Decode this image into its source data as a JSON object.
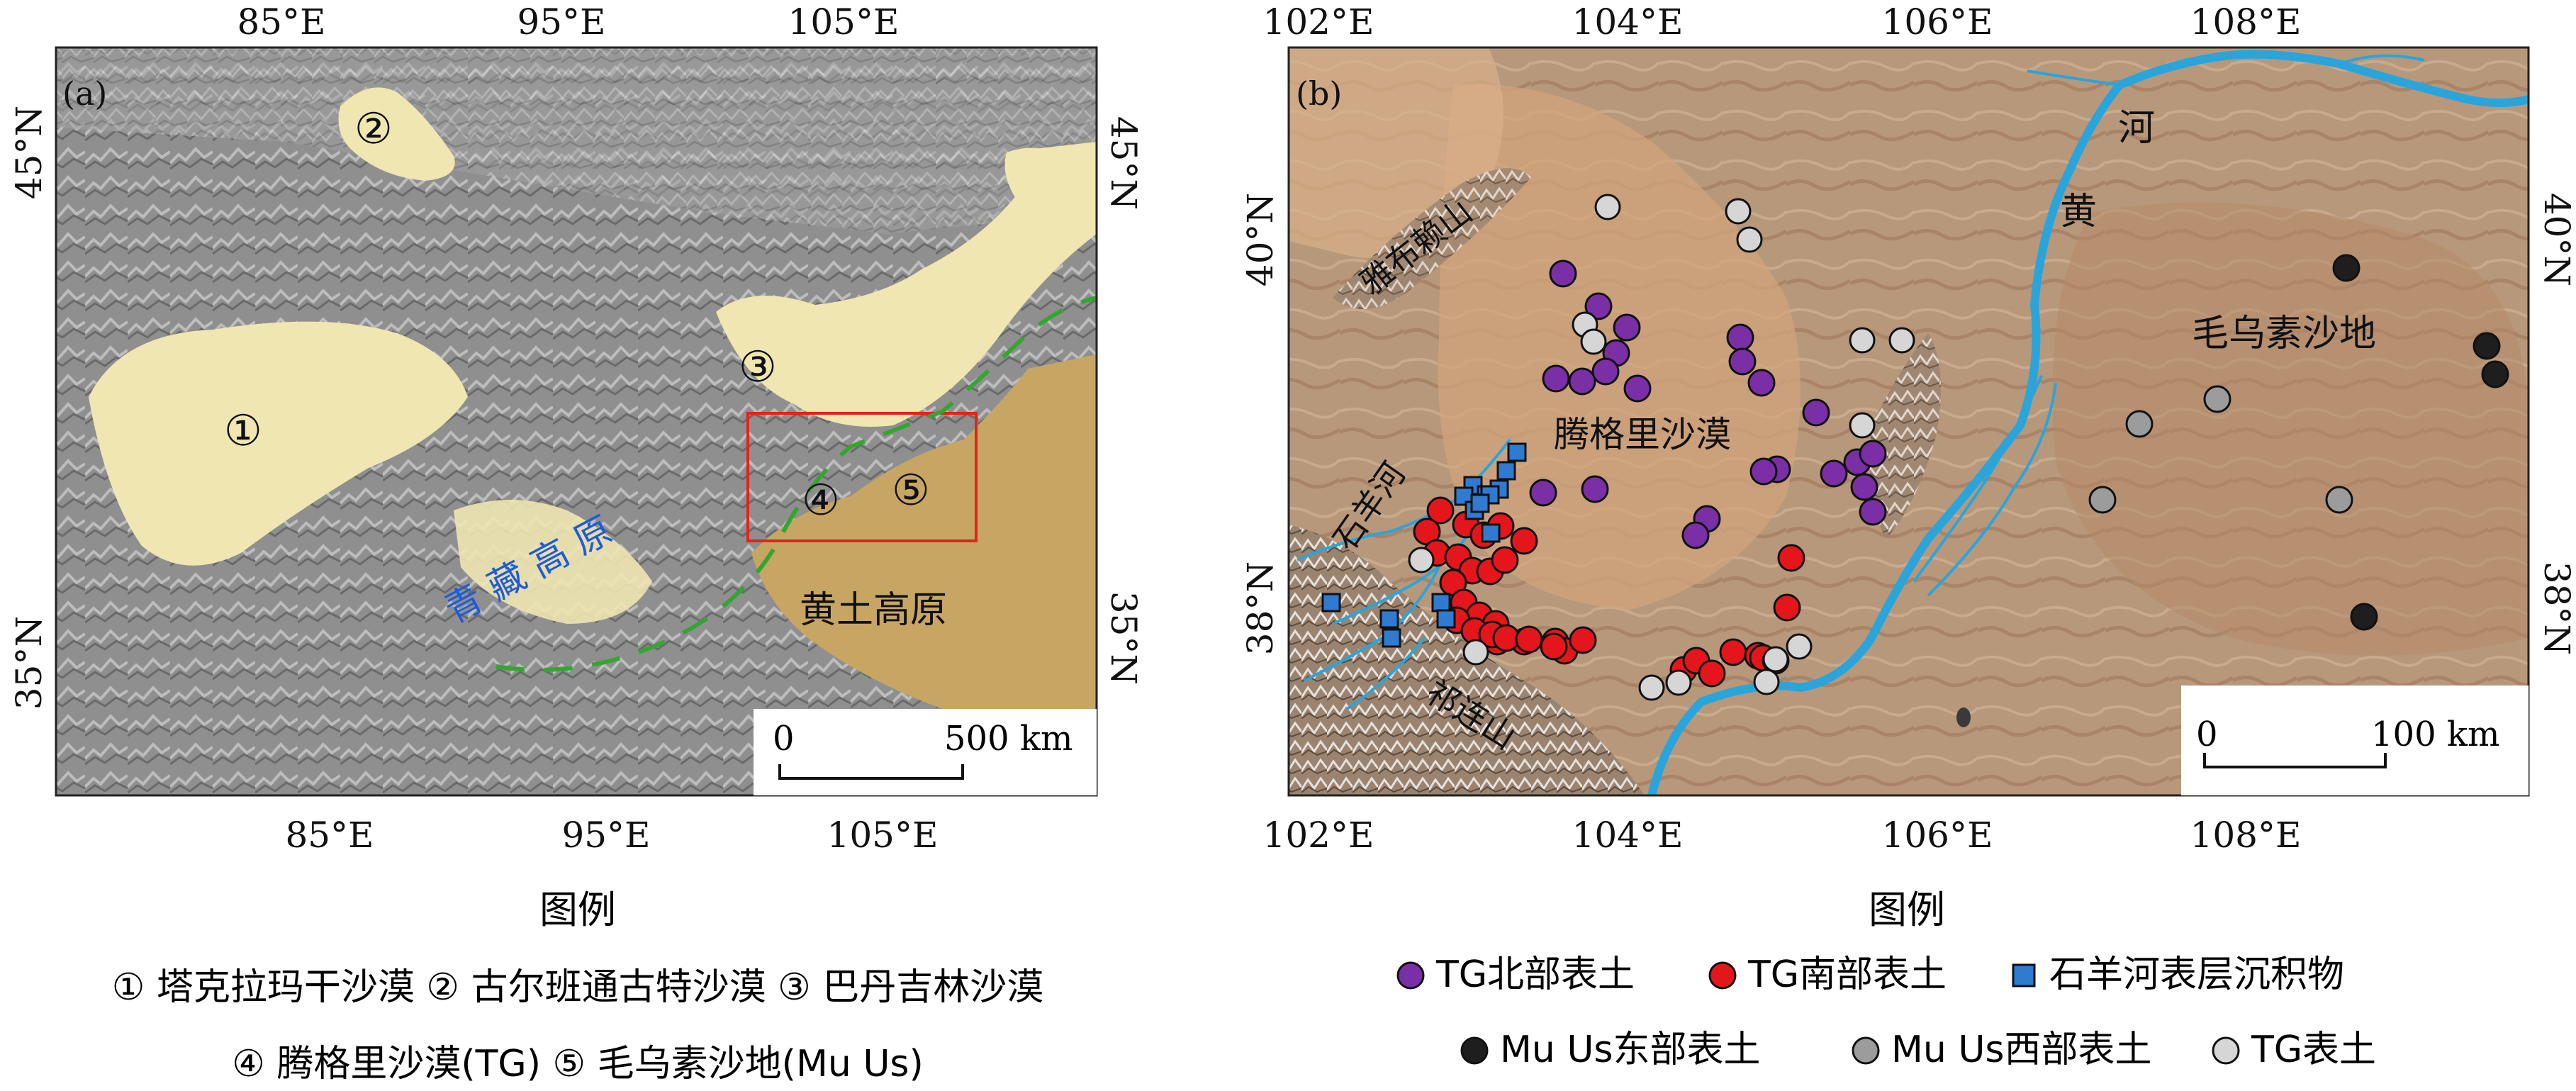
{
  "panel_a": {
    "tag": "(a)",
    "top_ticks": [
      "85°E",
      "95°E",
      "105°E"
    ],
    "bottom_ticks": [
      "85°E",
      "95°E",
      "105°E"
    ],
    "left_ticks": [
      "45°N",
      "35°N"
    ],
    "right_ticks": [
      "45°N",
      "35°N"
    ],
    "region_markers": [
      "①",
      "②",
      "③",
      "④",
      "⑤"
    ],
    "plateau_label": "青 藏 高 原",
    "loess_label": "黄土高原",
    "scale": {
      "zero": "0",
      "end": "500 km"
    },
    "colors": {
      "desert": "#efe6b2",
      "loess": "#c7a664",
      "relief": "#8a8a8a",
      "box": "#e0241b",
      "dash": "#35a532",
      "plateau_text": "#1f5bd6"
    }
  },
  "panel_b": {
    "tag": "(b)",
    "top_ticks": [
      "102°E",
      "104°E",
      "106°E",
      "108°E"
    ],
    "bottom_ticks": [
      "102°E",
      "104°E",
      "106°E",
      "108°E"
    ],
    "left_ticks": [
      "40°N",
      "38°N"
    ],
    "right_ticks": [
      "40°N",
      "38°N"
    ],
    "place_labels": {
      "yabulai": "雅布赖山",
      "tengger": "腾格里沙漠",
      "shiyang": "石羊河",
      "qilian": "祁连山",
      "mu_us": "毛乌素沙地",
      "river_he": "河",
      "river_huang": "黄"
    },
    "scale": {
      "zero": "0",
      "end": "100 km"
    },
    "colors": {
      "terrain": "#b59577",
      "river": "#2aa5dc",
      "north": "#7b2fa6",
      "south": "#e4161b",
      "shiyang": "#2f7bd1",
      "east": "#1e1e1e",
      "west": "#9c9c9c",
      "tg": "#d6d6d6"
    }
  },
  "legend_left": {
    "title": "图例",
    "line1": "① 塔克拉玛干沙漠 ② 古尔班通古特沙漠 ③ 巴丹吉林沙漠",
    "line2": "④ 腾格里沙漠(TG)   ⑤ 毛乌素沙地(Mu Us)"
  },
  "legend_right": {
    "title": "图例",
    "items": [
      {
        "key": "north",
        "label": "TG北部表土",
        "color": "#7b2fa6",
        "shape": "circle"
      },
      {
        "key": "south",
        "label": "TG南部表土",
        "color": "#e4161b",
        "shape": "circle"
      },
      {
        "key": "shiyang",
        "label": "石羊河表层沉积物",
        "color": "#2f7bd1",
        "shape": "square"
      },
      {
        "key": "east",
        "label": "Mu Us东部表土",
        "color": "#1e1e1e",
        "shape": "circle"
      },
      {
        "key": "west",
        "label": "Mu Us西部表土",
        "color": "#9c9c9c",
        "shape": "circle"
      },
      {
        "key": "tg",
        "label": "TG表土",
        "color": "#d6d6d6",
        "shape": "circle"
      }
    ]
  }
}
